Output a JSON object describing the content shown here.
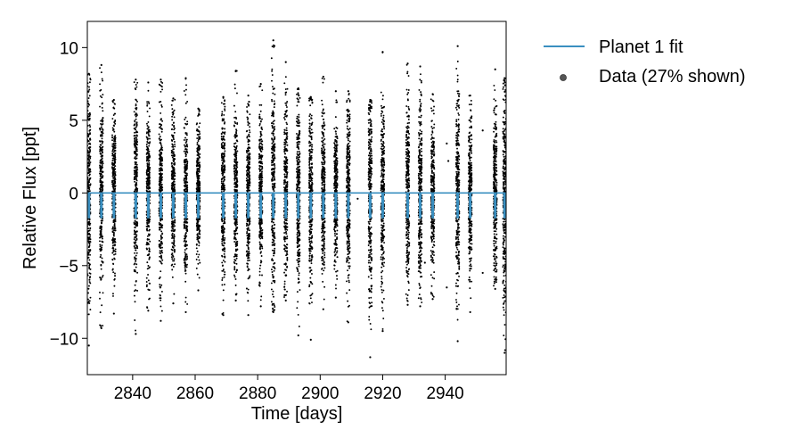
{
  "chart_data": {
    "type": "scatter",
    "title": "",
    "xlabel": "Time [days]",
    "ylabel": "Relative Flux [ppt]",
    "xlim": [
      2825.5,
      2959.5
    ],
    "ylim": [
      -12.5,
      11.8
    ],
    "x_ticks": [
      2840,
      2860,
      2880,
      2900,
      2920,
      2940
    ],
    "y_ticks": [
      -10,
      -5,
      0,
      5,
      10
    ],
    "x_tick_labels": [
      "2840",
      "2860",
      "2880",
      "2900",
      "2920",
      "2940"
    ],
    "y_tick_labels": [
      "−10",
      "−5",
      "0",
      "5",
      "10"
    ],
    "grid": false,
    "legend_position": "outside-right-top",
    "series": [
      {
        "name": "Planet 1 fit",
        "kind": "line",
        "color": "#3a8fc0",
        "baseline": 0,
        "transit_depth": -1.7,
        "transit_times": [
          2826,
          2830,
          2834,
          2841,
          2845,
          2849,
          2853,
          2857,
          2861,
          2869,
          2873,
          2877,
          2881,
          2885,
          2889,
          2893,
          2897,
          2901,
          2905,
          2909,
          2916,
          2920,
          2928,
          2932,
          2936,
          2944,
          2948,
          2956,
          2959
        ]
      },
      {
        "name": "Data (27% shown)",
        "kind": "scatter",
        "color": "#000000",
        "clusters": [
          {
            "x": 2826.0,
            "ymin": -10.5,
            "ymax": 8.2
          },
          {
            "x": 2830.0,
            "ymin": -9.3,
            "ymax": 8.8
          },
          {
            "x": 2834.0,
            "ymin": -8.3,
            "ymax": 6.4
          },
          {
            "x": 2841.0,
            "ymin": -9.7,
            "ymax": 7.8
          },
          {
            "x": 2845.0,
            "ymin": -8.1,
            "ymax": 7.6
          },
          {
            "x": 2849.0,
            "ymin": -8.8,
            "ymax": 7.8
          },
          {
            "x": 2853.0,
            "ymin": -7.6,
            "ymax": 6.5
          },
          {
            "x": 2857.0,
            "ymin": -8.2,
            "ymax": 7.9
          },
          {
            "x": 2861.0,
            "ymin": -6.7,
            "ymax": 5.8
          },
          {
            "x": 2869.0,
            "ymin": -8.4,
            "ymax": 6.6
          },
          {
            "x": 2873.0,
            "ymin": -7.4,
            "ymax": 8.4
          },
          {
            "x": 2877.0,
            "ymin": -8.4,
            "ymax": 6.7
          },
          {
            "x": 2881.0,
            "ymin": -7.8,
            "ymax": 7.5
          },
          {
            "x": 2885.0,
            "ymin": -8.2,
            "ymax": 10.5
          },
          {
            "x": 2889.0,
            "ymin": -7.4,
            "ymax": 9.0
          },
          {
            "x": 2893.0,
            "ymin": -9.8,
            "ymax": 7.2
          },
          {
            "x": 2897.0,
            "ymin": -10.1,
            "ymax": 6.6
          },
          {
            "x": 2901.0,
            "ymin": -8.0,
            "ymax": 8.0
          },
          {
            "x": 2905.0,
            "ymin": -7.2,
            "ymax": 7.0
          },
          {
            "x": 2909.0,
            "ymin": -8.9,
            "ymax": 7.0
          },
          {
            "x": 2916.0,
            "ymin": -11.3,
            "ymax": 6.4
          },
          {
            "x": 2920.0,
            "ymin": -9.5,
            "ymax": 9.7
          },
          {
            "x": 2928.0,
            "ymin": -7.7,
            "ymax": 8.9
          },
          {
            "x": 2932.0,
            "ymin": -7.8,
            "ymax": 8.7
          },
          {
            "x": 2936.0,
            "ymin": -7.3,
            "ymax": 6.8
          },
          {
            "x": 2944.0,
            "ymin": -10.2,
            "ymax": 10.1
          },
          {
            "x": 2948.0,
            "ymin": -8.2,
            "ymax": 6.7
          },
          {
            "x": 2956.0,
            "ymin": -6.6,
            "ymax": 8.5
          },
          {
            "x": 2959.0,
            "ymin": -11.0,
            "ymax": 7.9
          }
        ],
        "sparse_points": [
          {
            "x": 2912.0,
            "y": -0.4
          },
          {
            "x": 2940.5,
            "y": 3.4
          },
          {
            "x": 2940.5,
            "y": -6.5
          },
          {
            "x": 2941.0,
            "y": 2.2
          },
          {
            "x": 2952.0,
            "y": -5.5
          },
          {
            "x": 2952.0,
            "y": 4.3
          },
          {
            "x": 2933.5,
            "y": -4.8
          }
        ]
      }
    ]
  }
}
